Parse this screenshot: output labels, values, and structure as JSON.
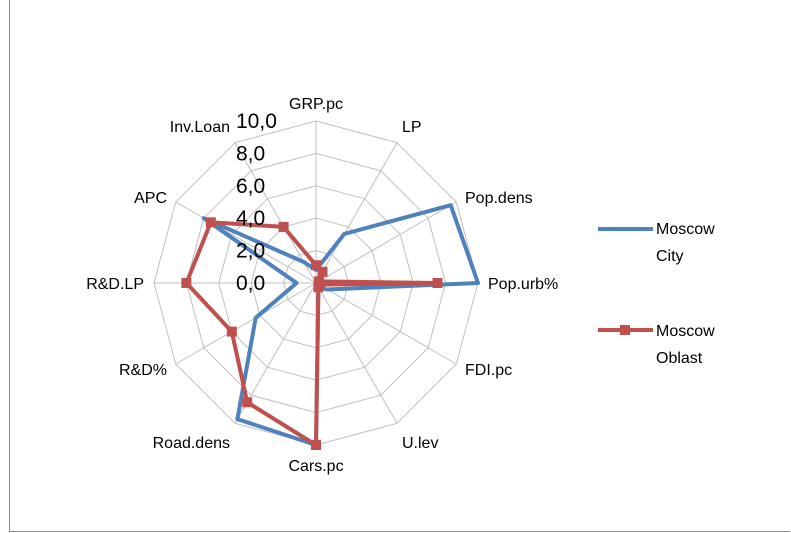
{
  "chart_data": {
    "type": "radar",
    "title": "",
    "axes": [
      "GRP.pc",
      "LP",
      "Pop.dens",
      "Pop.urb%",
      "FDI.pc",
      "U.lev",
      "Cars.pc",
      "Road.dens",
      "R&D%",
      "R&D.LP",
      "APC",
      "Inv.Loan"
    ],
    "rlim": [
      0,
      10
    ],
    "ticks": [
      "0,0",
      "2,0",
      "4,0",
      "6,0",
      "8,0",
      "10,0"
    ],
    "tick_values": [
      0,
      2,
      4,
      6,
      8,
      10
    ],
    "grid": true,
    "legend_position": "right",
    "series": [
      {
        "name": "Moscow City",
        "color": "#4f81bd",
        "marker": "none",
        "values": [
          0.8,
          3.5,
          9.6,
          10.0,
          0.8,
          0.3,
          10.0,
          9.7,
          4.3,
          1.2,
          8.0,
          1.5
        ]
      },
      {
        "name": "Moscow Oblast",
        "color": "#c0504d",
        "marker": "square",
        "values": [
          1.1,
          0.8,
          0.2,
          7.5,
          0.2,
          0.3,
          10.0,
          8.5,
          6.0,
          8.0,
          7.5,
          4.0
        ]
      }
    ]
  },
  "legend": {
    "moscow_city_line1": "Moscow",
    "moscow_city_line2": "City",
    "moscow_oblast_line1": "Moscow",
    "moscow_oblast_line2": "Oblast"
  }
}
